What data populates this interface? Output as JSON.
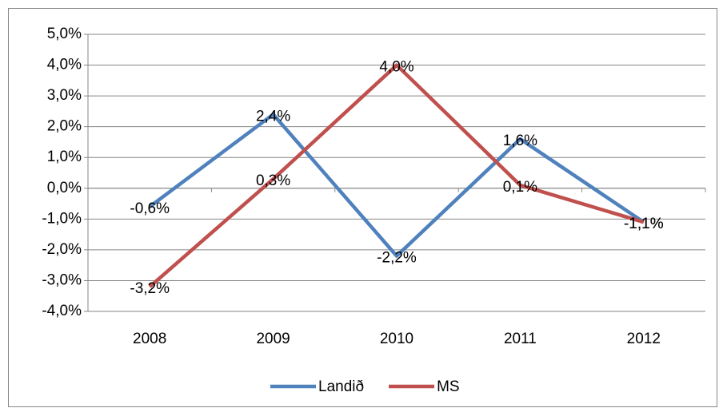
{
  "chart_data": {
    "type": "line",
    "categories": [
      "2008",
      "2009",
      "2010",
      "2011",
      "2012"
    ],
    "series": [
      {
        "name": "Landið",
        "color": "#4f81bd",
        "values": [
          -0.6,
          2.4,
          -2.2,
          1.6,
          -1.1
        ],
        "value_labels": [
          "-0,6%",
          "2,4%",
          "-2,2%",
          "1,6%",
          "-1,1%"
        ]
      },
      {
        "name": "MS",
        "color": "#c0504d",
        "values": [
          -3.2,
          0.3,
          4.0,
          0.1,
          -1.1
        ],
        "value_labels": [
          "-3,2%",
          "0,3%",
          "4,0%",
          "0,1%",
          "-1,1%"
        ]
      }
    ],
    "ylim": [
      -4,
      5
    ],
    "yticks": [
      {
        "value": -4,
        "label": "-4,0%"
      },
      {
        "value": -3,
        "label": "-3,0%"
      },
      {
        "value": -2,
        "label": "-2,0%"
      },
      {
        "value": -1,
        "label": "-1,0%"
      },
      {
        "value": 0,
        "label": "0,0%"
      },
      {
        "value": 1,
        "label": "1,0%"
      },
      {
        "value": 2,
        "label": "2,0%"
      },
      {
        "value": 3,
        "label": "3,0%"
      },
      {
        "value": 4,
        "label": "4,0%"
      },
      {
        "value": 5,
        "label": "5,0%"
      }
    ],
    "grid": true,
    "legend": "bottom"
  }
}
